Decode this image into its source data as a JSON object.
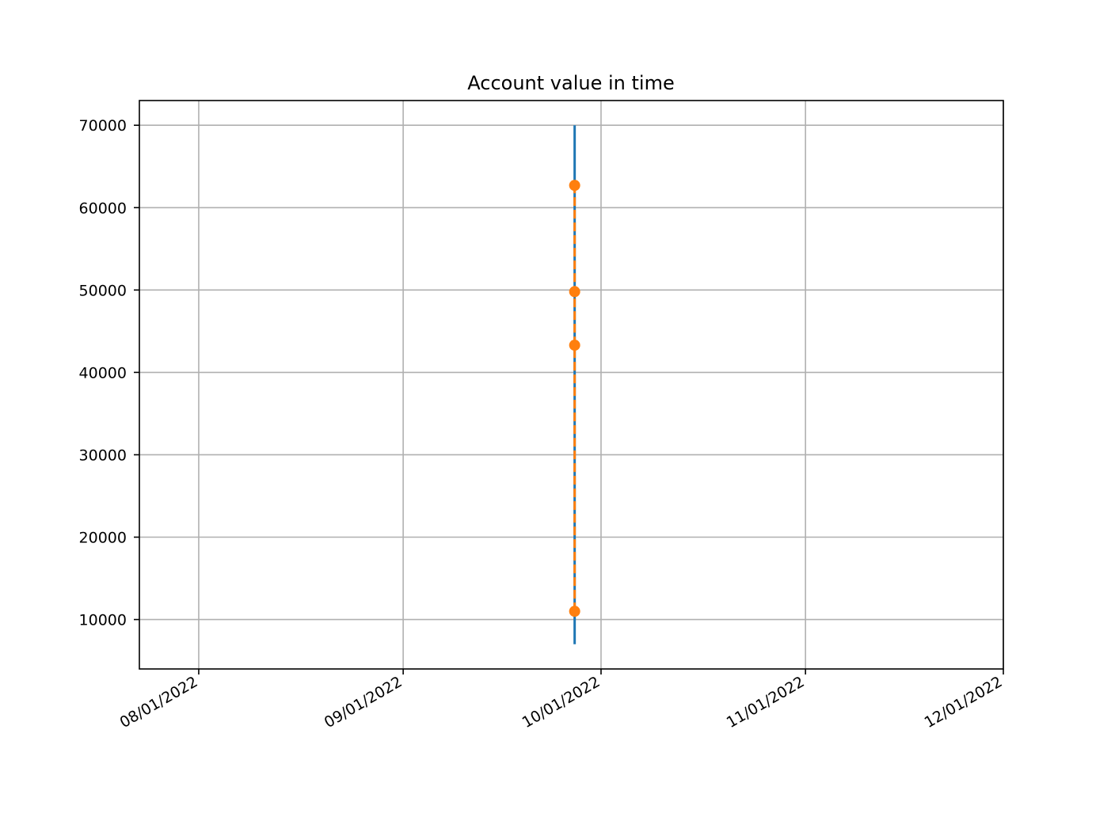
{
  "chart_data": {
    "type": "line",
    "title": "Account value in time",
    "xlabel": "",
    "ylabel": "",
    "x_axis": {
      "type": "date",
      "range": [
        "2022-07-23",
        "2022-12-01"
      ],
      "ticks": [
        "2022-08-01",
        "2022-09-01",
        "2022-10-01",
        "2022-11-01",
        "2022-12-01"
      ],
      "tick_labels": [
        "08/01/2022",
        "09/01/2022",
        "10/01/2022",
        "11/01/2022",
        "12/01/2022"
      ]
    },
    "y_axis": {
      "range": [
        4000,
        73000
      ],
      "ticks": [
        10000,
        20000,
        30000,
        40000,
        50000,
        60000,
        70000
      ],
      "tick_labels": [
        "10000",
        "20000",
        "30000",
        "40000",
        "50000",
        "60000",
        "70000"
      ]
    },
    "grid": true,
    "legend": "none",
    "series": [
      {
        "style": "solid line",
        "color": "#1f77b4",
        "x": [
          "2022-09-27",
          "2022-09-27"
        ],
        "y": [
          7000,
          70000
        ]
      },
      {
        "style": "dashed line with circle markers",
        "color": "#ff7f0e",
        "x": [
          "2022-09-27",
          "2022-09-27",
          "2022-09-27",
          "2022-09-27"
        ],
        "y": [
          11000,
          43300,
          49800,
          62700
        ]
      }
    ]
  }
}
